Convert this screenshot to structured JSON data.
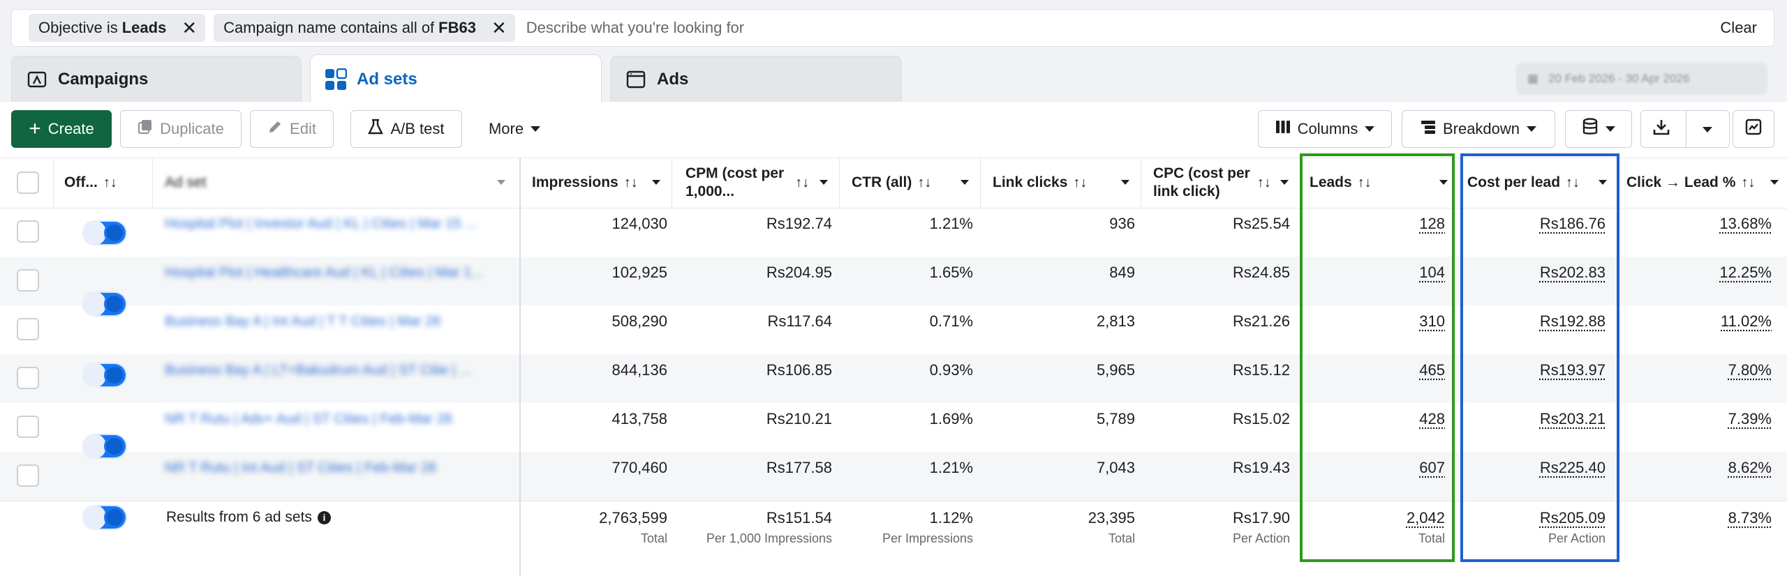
{
  "filters": {
    "chips": [
      {
        "prefix": "Objective is",
        "value": "Leads"
      },
      {
        "prefix": "Campaign name contains all of",
        "value": "FB63"
      }
    ],
    "placeholder": "Describe what you're looking for",
    "clear_label": "Clear"
  },
  "tabs": [
    {
      "label": "Campaigns",
      "icon": "campaign-folder-icon"
    },
    {
      "label": "Ad sets",
      "icon": "ad-sets-grid-icon",
      "active": true
    },
    {
      "label": "Ads",
      "icon": "ads-window-icon"
    }
  ],
  "date_range": "20 Feb 2026 - 30 Apr 2026",
  "toolbar": {
    "create": "Create",
    "duplicate": "Duplicate",
    "edit": "Edit",
    "ab_test": "A/B test",
    "more": "More",
    "columns": "Columns",
    "breakdown": "Breakdown"
  },
  "table": {
    "columns": {
      "off": "Off...",
      "adset": "Ad set",
      "impressions": "Impressions",
      "cpm_line1": "CPM (cost per",
      "cpm_line2": "1,000...",
      "ctr": "CTR (all)",
      "link_clicks": "Link clicks",
      "cpc_line1": "CPC (cost per",
      "cpc_line2": "link click)",
      "leads": "Leads",
      "cost_per_lead": "Cost per lead",
      "click_lead": "Click → Lead %"
    },
    "sort_glyph": "↑↓",
    "rows": [
      {
        "name": "Hospital Plot | Investor Aud | KL | Cities | Mar 15 ...",
        "impressions": "124,030",
        "cpm": "Rs192.74",
        "ctr": "1.21%",
        "link_clicks": "936",
        "cpc": "Rs25.54",
        "leads": "128",
        "cpl": "Rs186.76",
        "click_lead": "13.68%"
      },
      {
        "name": "Hospital Plot | Healthcare Aud | KL | Cities | Mar 1...",
        "impressions": "102,925",
        "cpm": "Rs204.95",
        "ctr": "1.65%",
        "link_clicks": "849",
        "cpc": "Rs24.85",
        "leads": "104",
        "cpl": "Rs202.83",
        "click_lead": "12.25%"
      },
      {
        "name": "Business Bay A | Int Aud | T T Cities | Mar 26",
        "impressions": "508,290",
        "cpm": "Rs117.64",
        "ctr": "0.71%",
        "link_clicks": "2,813",
        "cpc": "Rs21.26",
        "leads": "310",
        "cpl": "Rs192.88",
        "click_lead": "11.02%"
      },
      {
        "name": "Business Bay A | LT+Bakudrum Aud | ST Citie | ...",
        "impressions": "844,136",
        "cpm": "Rs106.85",
        "ctr": "0.93%",
        "link_clicks": "5,965",
        "cpc": "Rs15.12",
        "leads": "465",
        "cpl": "Rs193.97",
        "click_lead": "7.80%"
      },
      {
        "name": "NR T Rutu | Adv+ Aud | ST Cities | Feb-Mar 26",
        "impressions": "413,758",
        "cpm": "Rs210.21",
        "ctr": "1.69%",
        "link_clicks": "5,789",
        "cpc": "Rs15.02",
        "leads": "428",
        "cpl": "Rs203.21",
        "click_lead": "7.39%"
      },
      {
        "name": "NR T Rutu | Int Aud | ST Cities | Feb-Mar 26",
        "impressions": "770,460",
        "cpm": "Rs177.58",
        "ctr": "1.21%",
        "link_clicks": "7,043",
        "cpc": "Rs19.43",
        "leads": "607",
        "cpl": "Rs225.40",
        "click_lead": "8.62%"
      }
    ],
    "totals": {
      "label": "Results from 6 ad sets",
      "impressions": "2,763,599",
      "impressions_sub": "Total",
      "cpm": "Rs151.54",
      "cpm_sub": "Per 1,000 Impressions",
      "ctr": "1.12%",
      "ctr_sub": "Per Impressions",
      "link_clicks": "23,395",
      "link_clicks_sub": "Total",
      "cpc": "Rs17.90",
      "cpc_sub": "Per Action",
      "leads": "2,042",
      "leads_sub": "Total",
      "cpl": "Rs205.09",
      "cpl_sub": "Per Action",
      "click_lead": "8.73%"
    }
  },
  "colors": {
    "create_green": "#0f6641",
    "active_tab_blue": "#0a66c2",
    "leads_highlight": "#2e9b1d",
    "cpl_highlight": "#1f5fd0",
    "toggle_blue": "#1877f2"
  }
}
